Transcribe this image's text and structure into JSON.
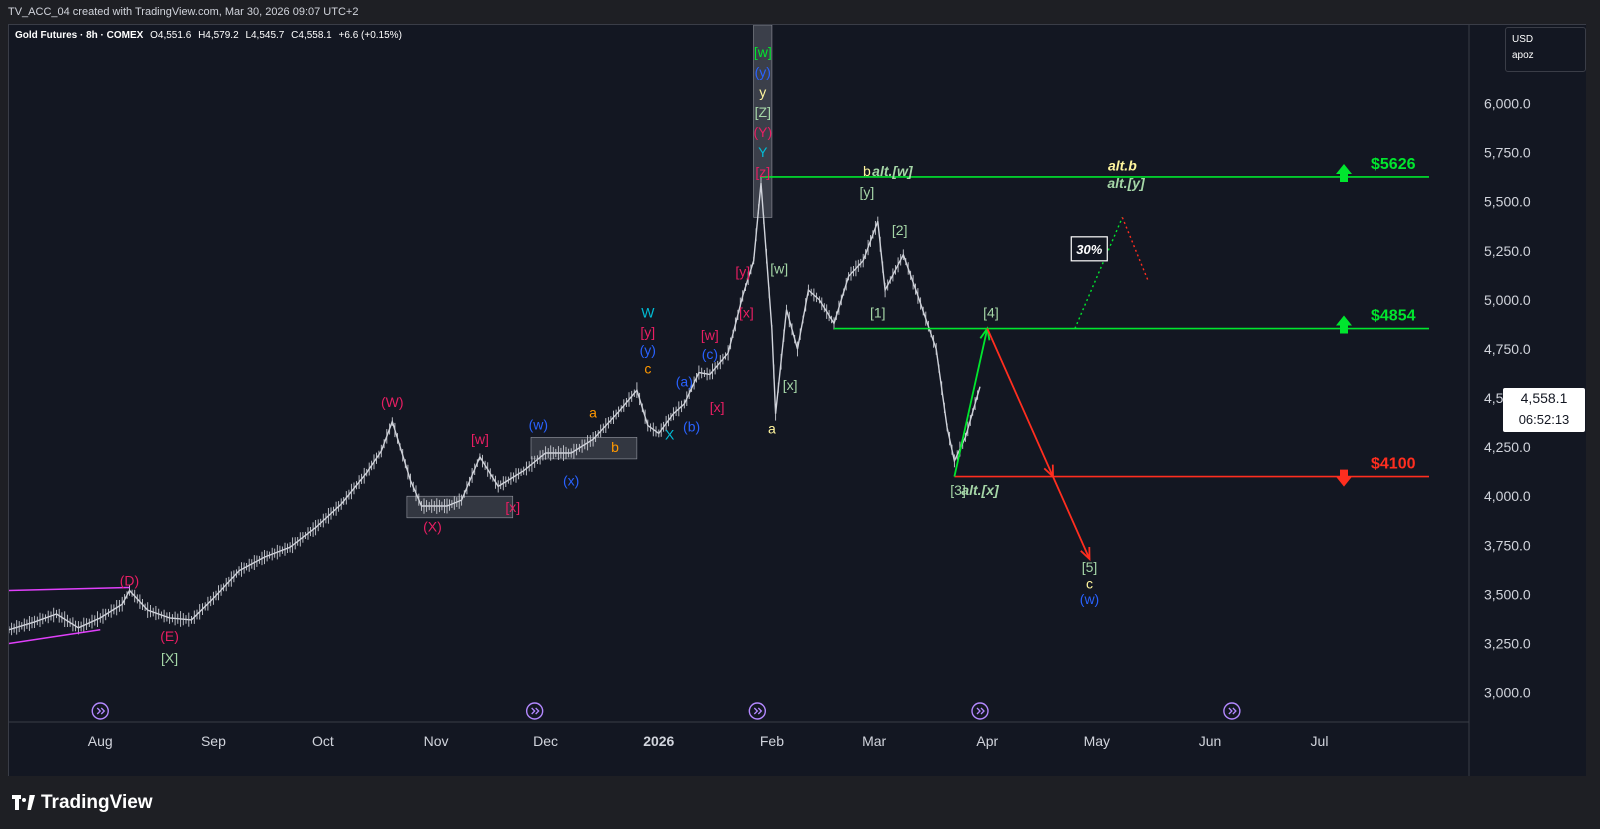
{
  "header": {
    "title": "TV_ACC_04 created with TradingView.com, Mar 30, 2026 09:07 UTC+2"
  },
  "legend": {
    "symbol": "Gold Futures · 8h · COMEX",
    "open": "O4,551.6",
    "high": "H4,579.2",
    "low": "L4,545.7",
    "close": "C4,558.1",
    "change": "+6.6 (+0.15%)"
  },
  "scale_box": {
    "currency": "USD",
    "user": "apoz"
  },
  "price_tag": {
    "price": "4,558.1",
    "countdown": "06:52:13"
  },
  "footer": {
    "brand": "TradingView"
  },
  "chart_data": {
    "type": "line",
    "series_style": "8h OHLC bars (approximated as close path)",
    "y_axis": {
      "ticks": [
        3000,
        3250,
        3500,
        3750,
        4000,
        4250,
        4500,
        4750,
        5000,
        5250,
        5500,
        5750,
        6000
      ],
      "tick_labels": [
        "3,000.0",
        "3,250.0",
        "3,500.0",
        "3,750.0",
        "4,000.0",
        "4,250.0",
        "4,500.0",
        "4,750.0",
        "5,000.0",
        "5,250.0",
        "5,500.0",
        "5,750.0",
        "6,000.0"
      ],
      "range": [
        2850,
        6400
      ]
    },
    "x_axis": {
      "tick_labels": [
        "Aug",
        "Sep",
        "Oct",
        "Nov",
        "Dec",
        "2026",
        "Feb",
        "Mar",
        "Apr",
        "May",
        "Jun",
        "Jul"
      ],
      "range": [
        "2025-07-07",
        "2026-07-31"
      ]
    },
    "price_path": [
      [
        "2025-07-07",
        3320
      ],
      [
        "2025-07-14",
        3360
      ],
      [
        "2025-07-20",
        3400
      ],
      [
        "2025-07-26",
        3330
      ],
      [
        "2025-08-01",
        3380
      ],
      [
        "2025-08-07",
        3450
      ],
      [
        "2025-08-09",
        3520
      ],
      [
        "2025-08-14",
        3420
      ],
      [
        "2025-08-20",
        3380
      ],
      [
        "2025-08-26",
        3370
      ],
      [
        "2025-09-01",
        3480
      ],
      [
        "2025-09-08",
        3620
      ],
      [
        "2025-09-15",
        3690
      ],
      [
        "2025-09-22",
        3740
      ],
      [
        "2025-09-29",
        3840
      ],
      [
        "2025-10-06",
        3960
      ],
      [
        "2025-10-13",
        4120
      ],
      [
        "2025-10-17",
        4230
      ],
      [
        "2025-10-20",
        4380
      ],
      [
        "2025-10-25",
        4080
      ],
      [
        "2025-10-28",
        3950
      ],
      [
        "2025-11-04",
        3950
      ],
      [
        "2025-11-08",
        3980
      ],
      [
        "2025-11-13",
        4200
      ],
      [
        "2025-11-18",
        4050
      ],
      [
        "2025-11-25",
        4130
      ],
      [
        "2025-12-01",
        4220
      ],
      [
        "2025-12-08",
        4220
      ],
      [
        "2025-12-14",
        4290
      ],
      [
        "2025-12-21",
        4430
      ],
      [
        "2025-12-26",
        4540
      ],
      [
        "2025-12-29",
        4360
      ],
      [
        "2026-01-01",
        4320
      ],
      [
        "2026-01-05",
        4420
      ],
      [
        "2026-01-08",
        4470
      ],
      [
        "2026-01-12",
        4630
      ],
      [
        "2026-01-15",
        4620
      ],
      [
        "2026-01-20",
        4730
      ],
      [
        "2026-01-24",
        5020
      ],
      [
        "2026-01-27",
        5200
      ],
      [
        "2026-01-29",
        5595
      ],
      [
        "2026-02-01",
        4850
      ],
      [
        "2026-02-02",
        4420
      ],
      [
        "2026-02-05",
        4950
      ],
      [
        "2026-02-08",
        4750
      ],
      [
        "2026-02-11",
        5050
      ],
      [
        "2026-02-14",
        5000
      ],
      [
        "2026-02-18",
        4880
      ],
      [
        "2026-02-22",
        5120
      ],
      [
        "2026-02-26",
        5200
      ],
      [
        "2026-03-02",
        5400
      ],
      [
        "2026-03-04",
        5050
      ],
      [
        "2026-03-09",
        5230
      ],
      [
        "2026-03-13",
        5020
      ],
      [
        "2026-03-18",
        4750
      ],
      [
        "2026-03-21",
        4350
      ],
      [
        "2026-03-23",
        4180
      ],
      [
        "2026-03-26",
        4300
      ],
      [
        "2026-03-30",
        4558
      ]
    ],
    "levels": [
      {
        "price": 5626,
        "label": "$5626",
        "color": "#00e62e",
        "arrow": "up"
      },
      {
        "price": 4854,
        "label": "$4854",
        "color": "#00e62e",
        "arrow": "up"
      },
      {
        "price": 4100,
        "label": "$4100",
        "color": "#ff2e1f",
        "arrow": "down"
      }
    ],
    "projections": [
      {
        "color": "#00e62e",
        "points": [
          [
            "2026-03-23",
            4100
          ],
          [
            "2026-04-01",
            4854
          ]
        ]
      },
      {
        "color": "#ff2e1f",
        "points": [
          [
            "2026-04-01",
            4854
          ],
          [
            "2026-04-19",
            4100
          ],
          [
            "2026-04-29",
            3680
          ]
        ]
      }
    ],
    "alt_projection": {
      "green_dotted": [
        [
          "2026-04-25",
          4854
        ],
        [
          "2026-05-08",
          5420
        ]
      ],
      "red_dotted": [
        [
          "2026-05-08",
          5420
        ],
        [
          "2026-05-15",
          5100
        ]
      ],
      "probability": "30%"
    },
    "wave_labels": [
      {
        "t": "(D)",
        "d": "2025-08-09",
        "p": 3545,
        "c": "#e91e63"
      },
      {
        "t": "(E)",
        "d": "2025-08-20",
        "p": 3262,
        "c": "#e91e63"
      },
      {
        "t": "[X]",
        "d": "2025-08-20",
        "p": 3150,
        "c": "#a5d6a7"
      },
      {
        "t": "(W)",
        "d": "2025-10-20",
        "p": 4455,
        "c": "#e91e63"
      },
      {
        "t": "(X)",
        "d": "2025-10-31",
        "p": 3820,
        "c": "#e91e63"
      },
      {
        "t": "[w]",
        "d": "2025-11-13",
        "p": 4265,
        "c": "#e91e63"
      },
      {
        "t": "[x]",
        "d": "2025-11-22",
        "p": 3920,
        "c": "#e91e63"
      },
      {
        "t": "(w)",
        "d": "2025-11-29",
        "p": 4340,
        "c": "#2962ff"
      },
      {
        "t": "(x)",
        "d": "2025-12-08",
        "p": 4055,
        "c": "#2962ff"
      },
      {
        "t": "a",
        "d": "2025-12-14",
        "p": 4400,
        "c": "#ff9800"
      },
      {
        "t": "b",
        "d": "2025-12-20",
        "p": 4225,
        "c": "#ff9800"
      },
      {
        "t": "c",
        "d": "2025-12-29",
        "p": 4625,
        "c": "#ff9800"
      },
      {
        "t": "W",
        "d": "2025-12-29",
        "p": 4910,
        "c": "#00bcd4"
      },
      {
        "t": "[y]",
        "d": "2025-12-29",
        "p": 4810,
        "c": "#e91e63"
      },
      {
        "t": "(y)",
        "d": "2025-12-29",
        "p": 4720,
        "c": "#2962ff"
      },
      {
        "t": "X",
        "d": "2026-01-04",
        "p": 4290,
        "c": "#00bcd4"
      },
      {
        "t": "(a)",
        "d": "2026-01-08",
        "p": 4560,
        "c": "#2962ff"
      },
      {
        "t": "(b)",
        "d": "2026-01-10",
        "p": 4330,
        "c": "#2962ff"
      },
      {
        "t": "(c)",
        "d": "2026-01-15",
        "p": 4700,
        "c": "#2962ff"
      },
      {
        "t": "[w]",
        "d": "2026-01-15",
        "p": 4795,
        "c": "#e91e63"
      },
      {
        "t": "[x]",
        "d": "2026-01-17",
        "p": 4430,
        "c": "#e91e63"
      },
      {
        "t": "[y]",
        "d": "2026-01-24",
        "p": 5120,
        "c": "#e91e63"
      },
      {
        "t": "[x]",
        "d": "2026-01-25",
        "p": 4910,
        "c": "#e91e63"
      },
      {
        "t": "[w]",
        "d": "2026-02-03",
        "p": 5135,
        "c": "#a5d6a7"
      },
      {
        "t": "[x]",
        "d": "2026-02-06",
        "p": 4540,
        "c": "#a5d6a7"
      },
      {
        "t": "a",
        "d": "2026-02-01",
        "p": 4320,
        "c": "#fff59d"
      },
      {
        "t": "b",
        "d": "2026-02-27",
        "p": 5630,
        "c": "#fff59d"
      },
      {
        "t": "alt.[w]",
        "d": "2026-03-06",
        "p": 5630,
        "c": "#a5d6a7",
        "italic": true
      },
      {
        "t": "[y]",
        "d": "2026-02-27",
        "p": 5525,
        "c": "#a5d6a7"
      },
      {
        "t": "[2]",
        "d": "2026-03-08",
        "p": 5330,
        "c": "#a5d6a7"
      },
      {
        "t": "[1]",
        "d": "2026-03-02",
        "p": 4910,
        "c": "#a5d6a7"
      },
      {
        "t": "[4]",
        "d": "2026-04-02",
        "p": 4910,
        "c": "#a5d6a7"
      },
      {
        "t": "[3]",
        "d": "2026-03-24",
        "p": 4005,
        "c": "#a5d6a7"
      },
      {
        "t": "alt.[x]",
        "d": "2026-03-30",
        "p": 4005,
        "c": "#a5d6a7",
        "italic": true
      },
      {
        "t": "[5]",
        "d": "2026-04-29",
        "p": 3615,
        "c": "#a5d6a7"
      },
      {
        "t": "c",
        "d": "2026-04-29",
        "p": 3530,
        "c": "#fff59d"
      },
      {
        "t": "(w)",
        "d": "2026-04-29",
        "p": 3450,
        "c": "#2962ff"
      },
      {
        "t": "alt.b",
        "d": "2026-05-08",
        "p": 5660,
        "c": "#fff59d",
        "italic": true
      },
      {
        "t": "alt.[y]",
        "d": "2026-05-09",
        "p": 5570,
        "c": "#a5d6a7",
        "italic": true
      }
    ],
    "stack_labels": [
      {
        "t": "[w]",
        "c": "#00e62e"
      },
      {
        "t": "(y)",
        "c": "#2962ff"
      },
      {
        "t": "y",
        "c": "#fff59d"
      },
      {
        "t": "[Z]",
        "c": "#a5d6a7"
      },
      {
        "t": "(Y)",
        "c": "#e91e63"
      },
      {
        "t": "Y",
        "c": "#00bcd4"
      },
      {
        "t": "[z]",
        "c": "#e91e63"
      }
    ],
    "triangle": {
      "upper": [
        [
          "2025-07-07",
          3520
        ],
        [
          "2025-08-09",
          3535
        ]
      ],
      "lower": [
        [
          "2025-07-07",
          3250
        ],
        [
          "2025-08-01",
          3320
        ]
      ],
      "color": "#e040fb"
    },
    "grid": false,
    "legend_position": "top-left"
  }
}
